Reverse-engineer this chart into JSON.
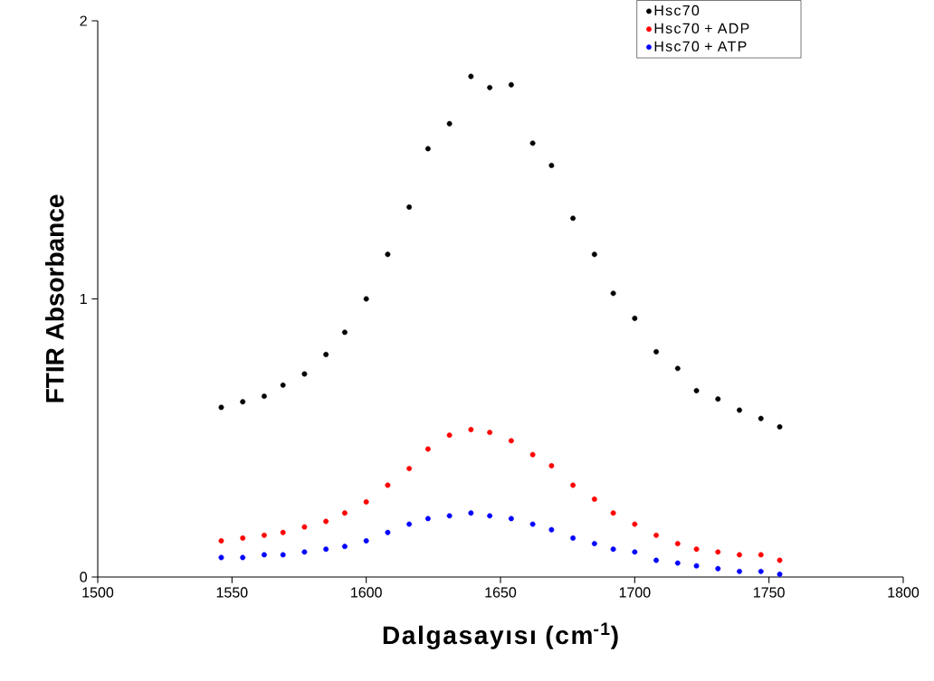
{
  "chart_data": {
    "type": "scatter",
    "xlabel": "Dalgasayısı (cm$^{-1}$)",
    "ylabel": "FTIR Absorbance",
    "x": [
      1546,
      1554,
      1562,
      1569,
      1577,
      1585,
      1592,
      1600,
      1608,
      1616,
      1623,
      1631,
      1639,
      1646,
      1654,
      1662,
      1669,
      1677,
      1685,
      1692,
      1700,
      1708,
      1716,
      1723,
      1731,
      1739,
      1747,
      1754
    ],
    "series": [
      {
        "name": "Hsc70",
        "color": "#000000",
        "values": [
          0.61,
          0.63,
          0.65,
          0.69,
          0.73,
          0.8,
          0.88,
          1.0,
          1.16,
          1.33,
          1.54,
          1.63,
          1.8,
          1.76,
          1.77,
          1.56,
          1.48,
          1.29,
          1.16,
          1.02,
          0.93,
          0.81,
          0.75,
          0.67,
          0.64,
          0.6,
          0.57,
          0.54
        ]
      },
      {
        "name": "Hsc70 + ADP",
        "color": "#ff0000",
        "values": [
          0.13,
          0.14,
          0.15,
          0.16,
          0.18,
          0.2,
          0.23,
          0.27,
          0.33,
          0.39,
          0.46,
          0.51,
          0.53,
          0.52,
          0.49,
          0.44,
          0.4,
          0.33,
          0.28,
          0.23,
          0.19,
          0.15,
          0.12,
          0.1,
          0.09,
          0.08,
          0.08,
          0.06
        ]
      },
      {
        "name": "Hsc70 + ATP",
        "color": "#0000ff",
        "values": [
          0.07,
          0.07,
          0.08,
          0.08,
          0.09,
          0.1,
          0.11,
          0.13,
          0.16,
          0.19,
          0.21,
          0.22,
          0.23,
          0.22,
          0.21,
          0.19,
          0.17,
          0.14,
          0.12,
          0.1,
          0.09,
          0.06,
          0.05,
          0.04,
          0.03,
          0.02,
          0.02,
          0.01
        ]
      }
    ],
    "xlim": [
      1500,
      1800
    ],
    "ylim": [
      0,
      2
    ],
    "xticks": [
      1500,
      1550,
      1600,
      1650,
      1700,
      1750,
      1800
    ],
    "yticks": [
      0,
      1,
      2
    ],
    "marker": "circle",
    "legend": "top right",
    "grid": false
  }
}
